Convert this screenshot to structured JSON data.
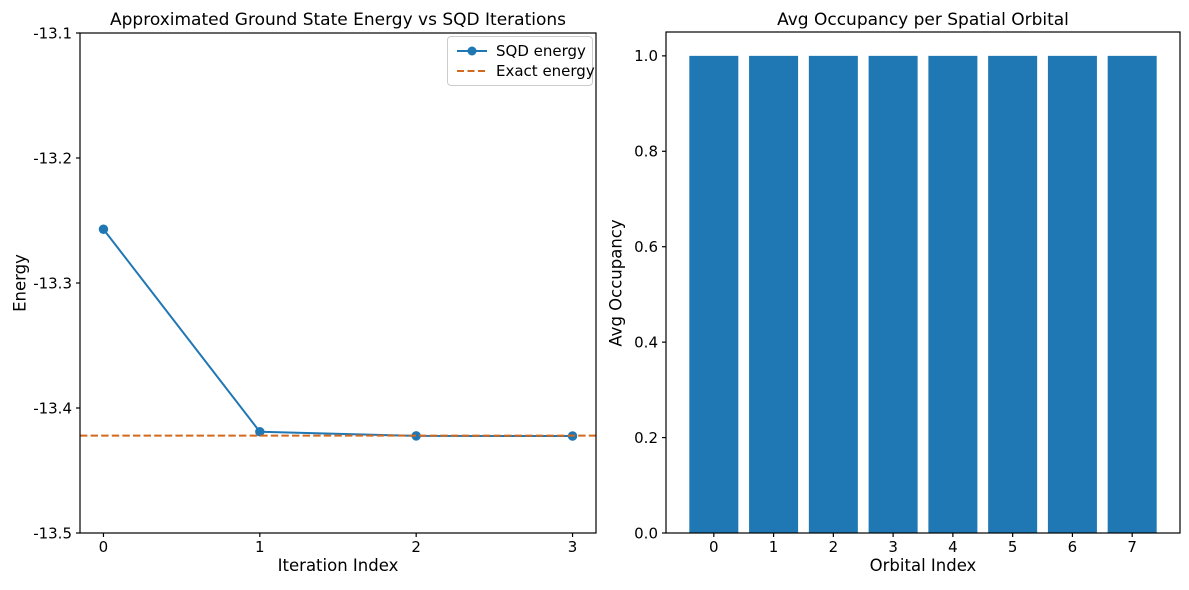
{
  "colors": {
    "sqd_blue": "#1f77b4",
    "exact_orange": "#d2691e",
    "bar_blue": "#1f77b4",
    "axis_black": "#000000",
    "legend_border": "#cccccc",
    "background": "#ffffff"
  },
  "chart_data": [
    {
      "type": "line",
      "title": "Approximated Ground State Energy vs SQD Iterations",
      "xlabel": "Iteration Index",
      "ylabel": "Energy",
      "x": [
        0,
        1,
        2,
        3
      ],
      "series": [
        {
          "name": "SQD energy",
          "kind": "line",
          "style": "solid",
          "marker": "circle",
          "color": "#1f77b4",
          "values": [
            -13.257,
            -13.419,
            -13.4223,
            -13.4224
          ]
        },
        {
          "name": "Exact energy",
          "kind": "hline",
          "style": "dashed",
          "color": "#d2691e",
          "value": -13.4221
        }
      ],
      "xlim": [
        -0.15,
        3.15
      ],
      "ylim": [
        -13.5,
        -13.1
      ],
      "xticks": {
        "values": [
          0,
          1,
          2,
          3
        ],
        "labels": [
          "0",
          "1",
          "2",
          "3"
        ]
      },
      "yticks": {
        "values": [
          -13.5,
          -13.4,
          -13.3,
          -13.2,
          -13.1
        ],
        "labels": [
          "-13.5",
          "-13.4",
          "-13.3",
          "-13.2",
          "-13.1"
        ]
      },
      "legend": {
        "position": "upper right",
        "entries": [
          "SQD energy",
          "Exact energy"
        ]
      },
      "grid": false
    },
    {
      "type": "bar",
      "title": "Avg Occupancy per Spatial Orbital",
      "xlabel": "Orbital Index",
      "ylabel": "Avg Occupancy",
      "categories": [
        "0",
        "1",
        "2",
        "3",
        "4",
        "5",
        "6",
        "7"
      ],
      "values": [
        1.0,
        1.0,
        1.0,
        1.0,
        1.0,
        1.0,
        1.0,
        1.0
      ],
      "bar_color": "#1f77b4",
      "bar_width": 0.82,
      "xlim": [
        -0.8,
        7.8
      ],
      "ylim": [
        0,
        1.05
      ],
      "yticks": {
        "values": [
          0.0,
          0.2,
          0.4,
          0.6,
          0.8,
          1.0
        ],
        "labels": [
          "0.0",
          "0.2",
          "0.4",
          "0.6",
          "0.8",
          "1.0"
        ]
      },
      "grid": false
    }
  ]
}
